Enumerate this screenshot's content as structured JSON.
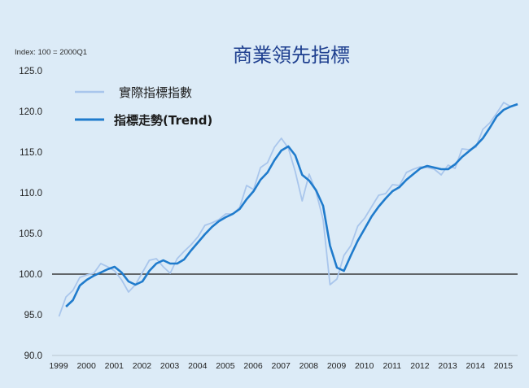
{
  "chart_data": {
    "type": "line",
    "title": "商業領先指標",
    "index_note": "Index: 100 = 2000Q1",
    "ylim": [
      90,
      125
    ],
    "yticks": [
      "125.0",
      "120.0",
      "115.0",
      "110.0",
      "105.0",
      "100.0",
      "95.0",
      "90.0"
    ],
    "xlim": [
      1999,
      2015.75
    ],
    "xticks": [
      "1999",
      "2000",
      "2001",
      "2002",
      "2003",
      "2004",
      "2005",
      "2006",
      "2007",
      "2008",
      "2009",
      "2010",
      "2011",
      "2012",
      "2013",
      "2014",
      "2015"
    ],
    "baseline": 100,
    "colors": {
      "actual": "#a9c6ec",
      "trend": "#1f7bcc",
      "baseline": "#3a3a3a",
      "title": "#1e3f8f"
    },
    "series": [
      {
        "name": "實際指標指數",
        "points": [
          [
            1999.25,
            94.8
          ],
          [
            1999.5,
            97.2
          ],
          [
            1999.75,
            98.0
          ],
          [
            2000.0,
            99.6
          ],
          [
            2000.25,
            99.9
          ],
          [
            2000.5,
            100.1
          ],
          [
            2000.75,
            101.3
          ],
          [
            2001.0,
            100.9
          ],
          [
            2001.25,
            100.4
          ],
          [
            2001.5,
            99.3
          ],
          [
            2001.75,
            97.8
          ],
          [
            2002.0,
            98.7
          ],
          [
            2002.25,
            100.2
          ],
          [
            2002.5,
            101.7
          ],
          [
            2002.75,
            101.9
          ],
          [
            2003.0,
            100.9
          ],
          [
            2003.25,
            100.1
          ],
          [
            2003.5,
            101.9
          ],
          [
            2003.75,
            102.8
          ],
          [
            2004.0,
            103.6
          ],
          [
            2004.25,
            104.6
          ],
          [
            2004.5,
            106.0
          ],
          [
            2004.75,
            106.3
          ],
          [
            2005.0,
            106.7
          ],
          [
            2005.25,
            107.4
          ],
          [
            2005.5,
            107.4
          ],
          [
            2005.75,
            108.2
          ],
          [
            2006.0,
            110.9
          ],
          [
            2006.25,
            110.4
          ],
          [
            2006.5,
            113.1
          ],
          [
            2006.75,
            113.7
          ],
          [
            2007.0,
            115.6
          ],
          [
            2007.25,
            116.7
          ],
          [
            2007.5,
            115.5
          ],
          [
            2007.75,
            112.6
          ],
          [
            2008.0,
            109.0
          ],
          [
            2008.25,
            112.3
          ],
          [
            2008.5,
            110.1
          ],
          [
            2008.75,
            106.7
          ],
          [
            2009.0,
            98.7
          ],
          [
            2009.25,
            99.4
          ],
          [
            2009.5,
            102.3
          ],
          [
            2009.75,
            103.5
          ],
          [
            2010.0,
            105.9
          ],
          [
            2010.25,
            106.9
          ],
          [
            2010.5,
            108.3
          ],
          [
            2010.75,
            109.7
          ],
          [
            2011.0,
            109.9
          ],
          [
            2011.25,
            111.0
          ],
          [
            2011.5,
            110.9
          ],
          [
            2011.75,
            112.5
          ],
          [
            2012.0,
            112.9
          ],
          [
            2012.25,
            113.2
          ],
          [
            2012.5,
            113.1
          ],
          [
            2012.75,
            112.9
          ],
          [
            2013.0,
            112.2
          ],
          [
            2013.25,
            113.4
          ],
          [
            2013.5,
            113.0
          ],
          [
            2013.75,
            115.4
          ],
          [
            2014.0,
            115.3
          ],
          [
            2014.25,
            115.6
          ],
          [
            2014.5,
            117.8
          ],
          [
            2014.75,
            118.6
          ],
          [
            2015.0,
            119.8
          ],
          [
            2015.25,
            121.1
          ],
          [
            2015.5,
            120.6
          ],
          [
            2015.75,
            120.8
          ]
        ]
      },
      {
        "name": "指標走勢(Trend)",
        "points": [
          [
            1999.5,
            96.0
          ],
          [
            1999.75,
            96.8
          ],
          [
            2000.0,
            98.6
          ],
          [
            2000.25,
            99.3
          ],
          [
            2000.5,
            99.8
          ],
          [
            2000.75,
            100.2
          ],
          [
            2001.0,
            100.6
          ],
          [
            2001.25,
            100.9
          ],
          [
            2001.5,
            100.2
          ],
          [
            2001.75,
            99.1
          ],
          [
            2002.0,
            98.7
          ],
          [
            2002.25,
            99.1
          ],
          [
            2002.5,
            100.4
          ],
          [
            2002.75,
            101.3
          ],
          [
            2003.0,
            101.7
          ],
          [
            2003.25,
            101.3
          ],
          [
            2003.5,
            101.3
          ],
          [
            2003.75,
            101.8
          ],
          [
            2004.0,
            102.9
          ],
          [
            2004.25,
            103.9
          ],
          [
            2004.5,
            104.9
          ],
          [
            2004.75,
            105.8
          ],
          [
            2005.0,
            106.5
          ],
          [
            2005.25,
            107.0
          ],
          [
            2005.5,
            107.4
          ],
          [
            2005.75,
            108.0
          ],
          [
            2006.0,
            109.2
          ],
          [
            2006.25,
            110.2
          ],
          [
            2006.5,
            111.6
          ],
          [
            2006.75,
            112.5
          ],
          [
            2007.0,
            114.0
          ],
          [
            2007.25,
            115.2
          ],
          [
            2007.5,
            115.7
          ],
          [
            2007.75,
            114.6
          ],
          [
            2008.0,
            112.2
          ],
          [
            2008.25,
            111.5
          ],
          [
            2008.5,
            110.3
          ],
          [
            2008.75,
            108.4
          ],
          [
            2009.0,
            103.5
          ],
          [
            2009.25,
            100.8
          ],
          [
            2009.5,
            100.4
          ],
          [
            2009.75,
            102.3
          ],
          [
            2010.0,
            104.1
          ],
          [
            2010.25,
            105.6
          ],
          [
            2010.5,
            107.1
          ],
          [
            2010.75,
            108.3
          ],
          [
            2011.0,
            109.3
          ],
          [
            2011.25,
            110.2
          ],
          [
            2011.5,
            110.7
          ],
          [
            2011.75,
            111.6
          ],
          [
            2012.0,
            112.3
          ],
          [
            2012.25,
            113.0
          ],
          [
            2012.5,
            113.3
          ],
          [
            2012.75,
            113.1
          ],
          [
            2013.0,
            112.9
          ],
          [
            2013.25,
            112.9
          ],
          [
            2013.5,
            113.5
          ],
          [
            2013.75,
            114.4
          ],
          [
            2014.0,
            115.1
          ],
          [
            2014.25,
            115.8
          ],
          [
            2014.5,
            116.7
          ],
          [
            2014.75,
            118.0
          ],
          [
            2015.0,
            119.4
          ],
          [
            2015.25,
            120.2
          ],
          [
            2015.5,
            120.6
          ],
          [
            2015.75,
            120.9
          ]
        ]
      }
    ]
  }
}
